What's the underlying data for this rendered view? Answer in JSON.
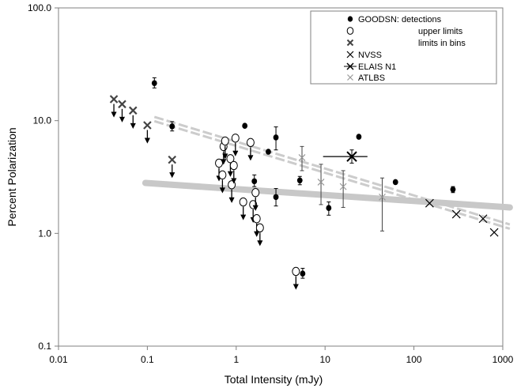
{
  "chart_data": {
    "type": "scatter",
    "xlabel": "Total Intensity (mJy)",
    "ylabel": "Percent  Polarization",
    "xscale": "log",
    "yscale": "log",
    "xlim": [
      0.01,
      1000
    ],
    "ylim": [
      0.1,
      100
    ],
    "x_ticks": [
      0.01,
      0.1,
      1,
      10,
      100,
      1000
    ],
    "x_tick_labels": [
      "0.01",
      "0.1",
      "1",
      "10",
      "100",
      "1000"
    ],
    "y_ticks": [
      0.1,
      1,
      10,
      100
    ],
    "y_tick_labels": [
      "0.1",
      "1.0",
      "10.0",
      "100.0"
    ],
    "grid": false,
    "legend": {
      "position": "top-right",
      "entries": [
        {
          "marker": "filled-circle",
          "label": "GOODSN: detections"
        },
        {
          "marker": "open-circle",
          "label": "upper limits"
        },
        {
          "marker": "cross-bold",
          "label": "limits in bins"
        },
        {
          "marker": "cross",
          "label": "NVSS"
        },
        {
          "marker": "cross-errorbar",
          "label": "ELAIS N1"
        },
        {
          "marker": "cross-light",
          "label": "ATLBS"
        }
      ]
    },
    "series": [
      {
        "name": "GOODSN: detections",
        "marker": "filled-circle",
        "points": [
          {
            "x": 0.12,
            "y": 21.5,
            "lo": 19.5,
            "hi": 24
          },
          {
            "x": 0.19,
            "y": 8.9,
            "lo": 8.1,
            "hi": 9.8
          },
          {
            "x": 1.25,
            "y": 9.0
          },
          {
            "x": 1.6,
            "y": 2.9,
            "lo": 2.6,
            "hi": 3.3
          },
          {
            "x": 2.3,
            "y": 5.3
          },
          {
            "x": 2.8,
            "y": 7.1,
            "lo": 5.5,
            "hi": 8.8
          },
          {
            "x": 2.8,
            "y": 2.1,
            "lo": 1.75,
            "hi": 2.5
          },
          {
            "x": 5.2,
            "y": 2.95,
            "lo": 2.7,
            "hi": 3.2
          },
          {
            "x": 5.6,
            "y": 0.44,
            "lo": 0.4,
            "hi": 0.49
          },
          {
            "x": 11,
            "y": 1.68,
            "lo": 1.45,
            "hi": 1.9
          },
          {
            "x": 24,
            "y": 7.2
          },
          {
            "x": 62,
            "y": 2.85
          },
          {
            "x": 275,
            "y": 2.45,
            "lo": 2.3,
            "hi": 2.6
          }
        ]
      },
      {
        "name": "upper limits",
        "marker": "open-circle",
        "points": [
          {
            "x": 0.64,
            "y": 4.2
          },
          {
            "x": 0.7,
            "y": 3.3
          },
          {
            "x": 0.72,
            "y": 5.9
          },
          {
            "x": 0.75,
            "y": 6.6
          },
          {
            "x": 0.86,
            "y": 4.6
          },
          {
            "x": 0.89,
            "y": 2.7
          },
          {
            "x": 0.94,
            "y": 4.0
          },
          {
            "x": 0.98,
            "y": 7.0
          },
          {
            "x": 1.2,
            "y": 1.9
          },
          {
            "x": 1.45,
            "y": 6.4
          },
          {
            "x": 1.55,
            "y": 1.8
          },
          {
            "x": 1.65,
            "y": 2.3
          },
          {
            "x": 1.7,
            "y": 1.35
          },
          {
            "x": 1.85,
            "y": 1.12
          },
          {
            "x": 4.7,
            "y": 0.46
          }
        ]
      },
      {
        "name": "limits in bins",
        "marker": "cross-bold",
        "points": [
          {
            "x": 0.042,
            "y": 15.5
          },
          {
            "x": 0.052,
            "y": 14.0
          },
          {
            "x": 0.069,
            "y": 12.3
          },
          {
            "x": 0.1,
            "y": 9.1
          },
          {
            "x": 0.19,
            "y": 4.5
          }
        ]
      },
      {
        "name": "NVSS",
        "marker": "cross",
        "points": [
          {
            "x": 150,
            "y": 1.85
          },
          {
            "x": 300,
            "y": 1.48
          },
          {
            "x": 600,
            "y": 1.35
          },
          {
            "x": 800,
            "y": 1.02
          }
        ]
      },
      {
        "name": "ELAIS N1",
        "marker": "cross-errorbar",
        "points": [
          {
            "x": 20,
            "y": 4.8,
            "xlo": 9.5,
            "xhi": 30,
            "lo": 4.2,
            "hi": 5.5
          }
        ]
      },
      {
        "name": "ATLBS",
        "marker": "cross-light",
        "points": [
          {
            "x": 5.5,
            "y": 4.7,
            "lo": 3.6,
            "hi": 5.9
          },
          {
            "x": 9.0,
            "y": 2.85,
            "lo": 1.8,
            "hi": 4.1
          },
          {
            "x": 16,
            "y": 2.6,
            "lo": 1.7,
            "hi": 3.6
          },
          {
            "x": 44,
            "y": 2.1,
            "lo": 1.05,
            "hi": 3.1
          }
        ]
      }
    ],
    "trend_lines": [
      {
        "name": "dashed-upper",
        "style": "double-dashed",
        "color": "#cccccc",
        "x1": 0.12,
        "y1": 10.8,
        "x2": 1200,
        "y2": 1.2
      },
      {
        "name": "dashed-lower",
        "style": "double-dashed",
        "color": "#cccccc",
        "x1": 0.12,
        "y1": 9.9,
        "x2": 1200,
        "y2": 1.1
      },
      {
        "name": "solid-band",
        "style": "thick-band",
        "color": "#c8c8c8",
        "x1": 0.095,
        "y1": 2.8,
        "x2": 1200,
        "y2": 1.7
      }
    ]
  }
}
